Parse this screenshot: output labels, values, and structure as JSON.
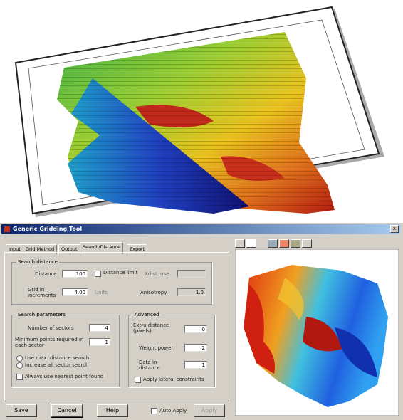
{
  "window": {
    "title": "Generic Gridding Tool"
  },
  "tabs": [
    "Input",
    "Grid Method",
    "Output",
    "Search/Distance",
    "Export"
  ],
  "search_distance": {
    "title": "Search distance",
    "distance_label": "Distance",
    "distance_value": "100",
    "option_label": "Distance limit",
    "grid_label": "Grid in increments",
    "grid_value": "4.00",
    "units_label": "Units",
    "x_label": "Xdist. use",
    "anisotropy_label": "Anisotropy",
    "anisotropy_value": "1.0"
  },
  "search_parameters": {
    "title": "Search parameters",
    "sectors_label": "Number of sectors",
    "sectors_value": "4",
    "min_points_label": "Minimum points required in each sector",
    "min_points_value": "1",
    "radio_1": "Use max. distance search",
    "radio_2": "Increase all sector search",
    "checkbox": "Always use nearest point found"
  },
  "advanced": {
    "title": "Advanced",
    "extra_label": "Extra distance (pixels)",
    "extra_value": "0",
    "weight_label": "Weight power",
    "weight_value": "2",
    "edge_label": "Data in distance",
    "edge_value": "1",
    "checkbox": "Apply lateral constraints"
  },
  "buttons": {
    "save": "Save",
    "cancel": "Cancel",
    "help": "Help",
    "auto_apply": "Auto Apply",
    "apply": "Apply"
  }
}
